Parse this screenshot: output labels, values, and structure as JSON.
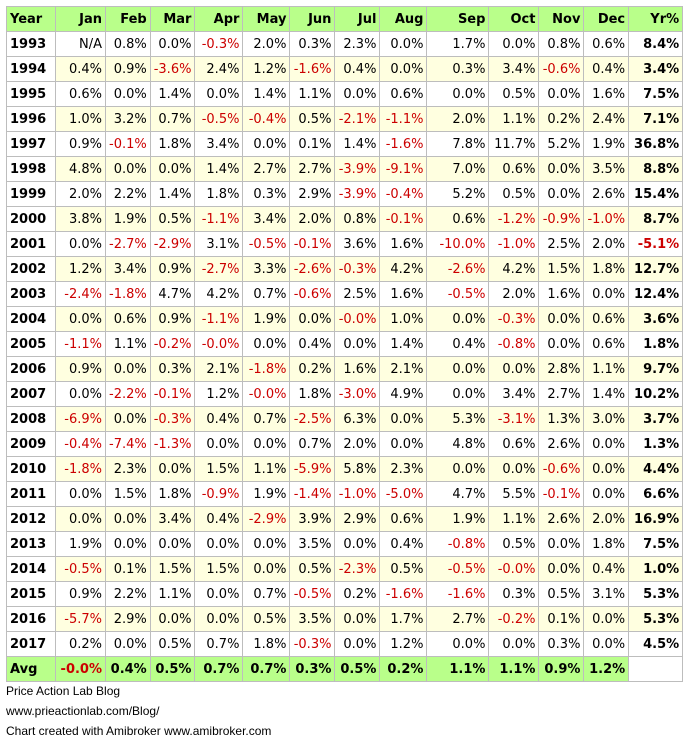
{
  "chart_data": {
    "type": "table",
    "columns": [
      "Year",
      "Jan",
      "Feb",
      "Mar",
      "Apr",
      "May",
      "Jun",
      "Jul",
      "Aug",
      "Sep",
      "Oct",
      "Nov",
      "Dec",
      "Yr%"
    ],
    "rows": [
      [
        "1993",
        "N/A",
        "0.8%",
        "0.0%",
        "-0.3%",
        "2.0%",
        "0.3%",
        "2.3%",
        "0.0%",
        "1.7%",
        "0.0%",
        "0.8%",
        "0.6%",
        "8.4%"
      ],
      [
        "1994",
        "0.4%",
        "0.9%",
        "-3.6%",
        "2.4%",
        "1.2%",
        "-1.6%",
        "0.4%",
        "0.0%",
        "0.3%",
        "3.4%",
        "-0.6%",
        "0.4%",
        "3.4%"
      ],
      [
        "1995",
        "0.6%",
        "0.0%",
        "1.4%",
        "0.0%",
        "1.4%",
        "1.1%",
        "0.0%",
        "0.6%",
        "0.0%",
        "0.5%",
        "0.0%",
        "1.6%",
        "7.5%"
      ],
      [
        "1996",
        "1.0%",
        "3.2%",
        "0.7%",
        "-0.5%",
        "-0.4%",
        "0.5%",
        "-2.1%",
        "-1.1%",
        "2.0%",
        "1.1%",
        "0.2%",
        "2.4%",
        "7.1%"
      ],
      [
        "1997",
        "0.9%",
        "-0.1%",
        "1.8%",
        "3.4%",
        "0.0%",
        "0.1%",
        "1.4%",
        "-1.6%",
        "7.8%",
        "11.7%",
        "5.2%",
        "1.9%",
        "36.8%"
      ],
      [
        "1998",
        "4.8%",
        "0.0%",
        "0.0%",
        "1.4%",
        "2.7%",
        "2.7%",
        "-3.9%",
        "-9.1%",
        "7.0%",
        "0.6%",
        "0.0%",
        "3.5%",
        "8.8%"
      ],
      [
        "1999",
        "2.0%",
        "2.2%",
        "1.4%",
        "1.8%",
        "0.3%",
        "2.9%",
        "-3.9%",
        "-0.4%",
        "5.2%",
        "0.5%",
        "0.0%",
        "2.6%",
        "15.4%"
      ],
      [
        "2000",
        "3.8%",
        "1.9%",
        "0.5%",
        "-1.1%",
        "3.4%",
        "2.0%",
        "0.8%",
        "-0.1%",
        "0.6%",
        "-1.2%",
        "-0.9%",
        "-1.0%",
        "8.7%"
      ],
      [
        "2001",
        "0.0%",
        "-2.7%",
        "-2.9%",
        "3.1%",
        "-0.5%",
        "-0.1%",
        "3.6%",
        "1.6%",
        "-10.0%",
        "-1.0%",
        "2.5%",
        "2.0%",
        "-5.1%"
      ],
      [
        "2002",
        "1.2%",
        "3.4%",
        "0.9%",
        "-2.7%",
        "3.3%",
        "-2.6%",
        "-0.3%",
        "4.2%",
        "-2.6%",
        "4.2%",
        "1.5%",
        "1.8%",
        "12.7%"
      ],
      [
        "2003",
        "-2.4%",
        "-1.8%",
        "4.7%",
        "4.2%",
        "0.7%",
        "-0.6%",
        "2.5%",
        "1.6%",
        "-0.5%",
        "2.0%",
        "1.6%",
        "0.0%",
        "12.4%"
      ],
      [
        "2004",
        "0.0%",
        "0.6%",
        "0.9%",
        "-1.1%",
        "1.9%",
        "0.0%",
        "-0.0%",
        "1.0%",
        "0.0%",
        "-0.3%",
        "0.0%",
        "0.6%",
        "3.6%"
      ],
      [
        "2005",
        "-1.1%",
        "1.1%",
        "-0.2%",
        "-0.0%",
        "0.0%",
        "0.4%",
        "0.0%",
        "1.4%",
        "0.4%",
        "-0.8%",
        "0.0%",
        "0.6%",
        "1.8%"
      ],
      [
        "2006",
        "0.9%",
        "0.0%",
        "0.3%",
        "2.1%",
        "-1.8%",
        "0.2%",
        "1.6%",
        "2.1%",
        "0.0%",
        "0.0%",
        "2.8%",
        "1.1%",
        "9.7%"
      ],
      [
        "2007",
        "0.0%",
        "-2.2%",
        "-0.1%",
        "1.2%",
        "-0.0%",
        "1.8%",
        "-3.0%",
        "4.9%",
        "0.0%",
        "3.4%",
        "2.7%",
        "1.4%",
        "10.2%"
      ],
      [
        "2008",
        "-6.9%",
        "0.0%",
        "-0.3%",
        "0.4%",
        "0.7%",
        "-2.5%",
        "6.3%",
        "0.0%",
        "5.3%",
        "-3.1%",
        "1.3%",
        "3.0%",
        "3.7%"
      ],
      [
        "2009",
        "-0.4%",
        "-7.4%",
        "-1.3%",
        "0.0%",
        "0.0%",
        "0.7%",
        "2.0%",
        "0.0%",
        "4.8%",
        "0.6%",
        "2.6%",
        "0.0%",
        "1.3%"
      ],
      [
        "2010",
        "-1.8%",
        "2.3%",
        "0.0%",
        "1.5%",
        "1.1%",
        "-5.9%",
        "5.8%",
        "2.3%",
        "0.0%",
        "0.0%",
        "-0.6%",
        "0.0%",
        "4.4%"
      ],
      [
        "2011",
        "0.0%",
        "1.5%",
        "1.8%",
        "-0.9%",
        "1.9%",
        "-1.4%",
        "-1.0%",
        "-5.0%",
        "4.7%",
        "5.5%",
        "-0.1%",
        "0.0%",
        "6.6%"
      ],
      [
        "2012",
        "0.0%",
        "0.0%",
        "3.4%",
        "0.4%",
        "-2.9%",
        "3.9%",
        "2.9%",
        "0.6%",
        "1.9%",
        "1.1%",
        "2.6%",
        "2.0%",
        "16.9%"
      ],
      [
        "2013",
        "1.9%",
        "0.0%",
        "0.0%",
        "0.0%",
        "0.0%",
        "3.5%",
        "0.0%",
        "0.4%",
        "-0.8%",
        "0.5%",
        "0.0%",
        "1.8%",
        "7.5%"
      ],
      [
        "2014",
        "-0.5%",
        "0.1%",
        "1.5%",
        "1.5%",
        "0.0%",
        "0.5%",
        "-2.3%",
        "0.5%",
        "-0.5%",
        "-0.0%",
        "0.0%",
        "0.4%",
        "1.0%"
      ],
      [
        "2015",
        "0.9%",
        "2.2%",
        "1.1%",
        "0.0%",
        "0.7%",
        "-0.5%",
        "0.2%",
        "-1.6%",
        "-1.6%",
        "0.3%",
        "0.5%",
        "3.1%",
        "5.3%"
      ],
      [
        "2016",
        "-5.7%",
        "2.9%",
        "0.0%",
        "0.0%",
        "0.5%",
        "3.5%",
        "0.0%",
        "1.7%",
        "2.7%",
        "-0.2%",
        "0.1%",
        "0.0%",
        "5.3%"
      ],
      [
        "2017",
        "0.2%",
        "0.0%",
        "0.5%",
        "0.7%",
        "1.8%",
        "-0.3%",
        "0.0%",
        "1.2%",
        "0.0%",
        "0.0%",
        "0.3%",
        "0.0%",
        "4.5%"
      ]
    ],
    "avg_row": [
      "Avg",
      "-0.0%",
      "0.4%",
      "0.5%",
      "0.7%",
      "0.7%",
      "0.3%",
      "0.5%",
      "0.2%",
      "1.1%",
      "1.1%",
      "0.9%",
      "1.2%",
      ""
    ],
    "colors": {
      "header_bg": "#b9ff8a",
      "alt_row_bg": "#ffffe0",
      "negative": "#cc0000",
      "positive": "#000000"
    }
  },
  "footer": {
    "line1": "Price Action Lab Blog",
    "line2": "www.prieactionlab.com/Blog/",
    "line3": "Chart created with Amibroker www.amibroker.com"
  }
}
